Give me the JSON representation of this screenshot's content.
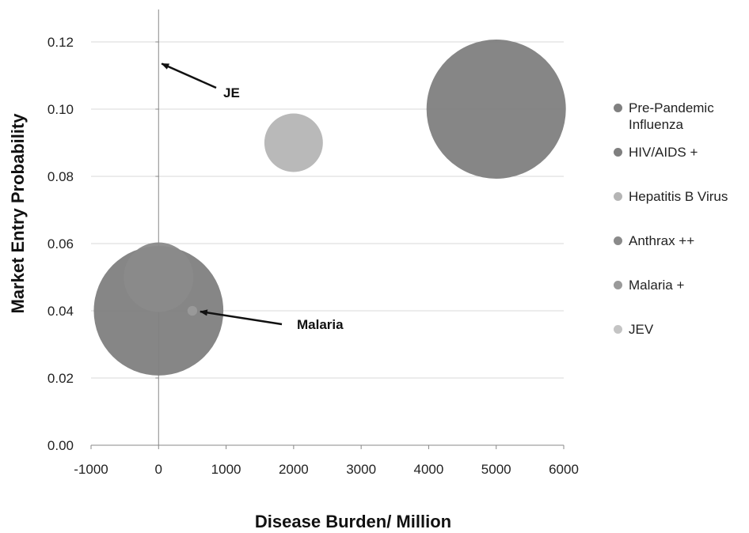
{
  "chart_data": {
    "type": "bubble",
    "xlabel": "Disease Burden/ Million",
    "ylabel": "Market Entry Probability",
    "xlim": [
      -1000,
      6000
    ],
    "ylim": [
      0,
      0.12
    ],
    "xticks": [
      "-1000",
      "0",
      "1000",
      "2000",
      "3000",
      "4000",
      "5000",
      "6000"
    ],
    "yticks": [
      "0.00",
      "0.02",
      "0.04",
      "0.06",
      "0.08",
      "0.10",
      "0.12"
    ],
    "grid": "horizontal",
    "legend_position": "right",
    "series": [
      {
        "name": "Pre-Pandemic Influenza",
        "x": 5000,
        "y": 0.1,
        "size": 1.0,
        "color": "#808080"
      },
      {
        "name": "HIV/AIDS +",
        "x": 0,
        "y": 0.04,
        "size": 0.93,
        "color": "#7f7f7f"
      },
      {
        "name": "Hepatitis B Virus",
        "x": 2000,
        "y": 0.09,
        "size": 0.42,
        "color": "#b5b5b5"
      },
      {
        "name": "Anthrax ++",
        "x": 0,
        "y": 0.05,
        "size": 0.5,
        "color": "#8a8a8a"
      },
      {
        "name": "Malaria +",
        "x": 500,
        "y": 0.04,
        "size": 0.07,
        "color": "#9a9a9a"
      },
      {
        "name": "JEV",
        "x": 0,
        "y": 0.11,
        "size": 0.0,
        "color": "#c4c4c4"
      }
    ],
    "annotations": [
      {
        "text": "JE",
        "x": 0,
        "y": 0.11
      },
      {
        "text": "Malaria",
        "x": 500,
        "y": 0.04
      }
    ]
  }
}
